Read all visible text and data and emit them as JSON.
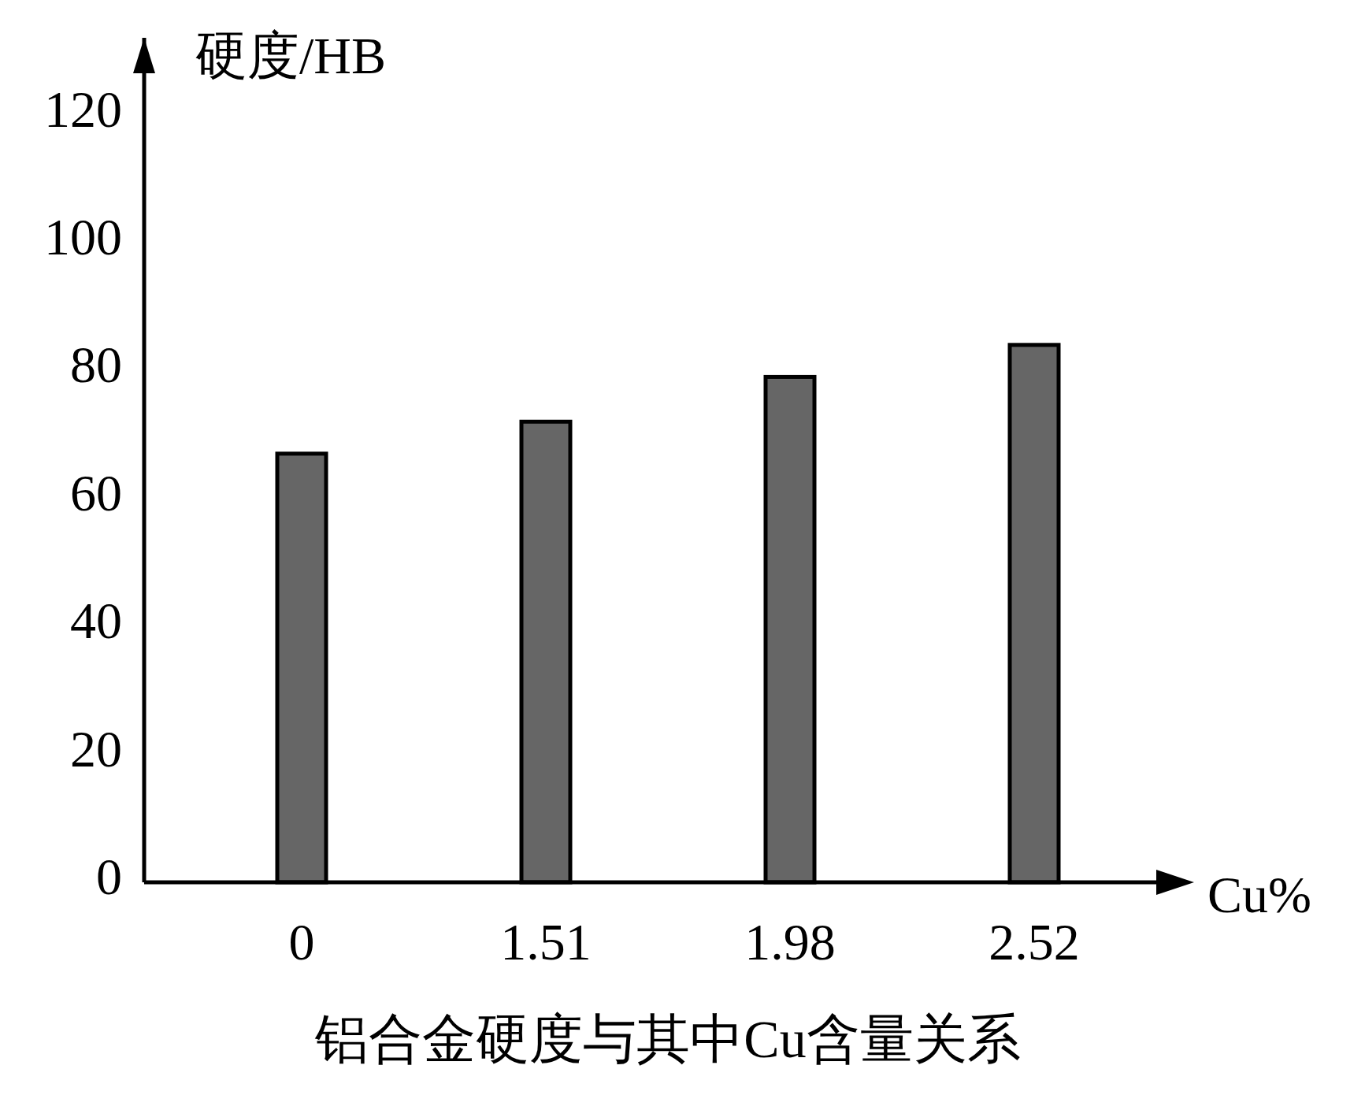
{
  "chart_data": {
    "type": "bar",
    "title": "铝合金硬度与其中Cu含量关系",
    "xlabel": "Cu%",
    "ylabel": "硬度/HB",
    "categories": [
      "0",
      "1.51",
      "1.98",
      "2.52"
    ],
    "values": [
      67,
      72,
      79,
      84
    ],
    "color": "#666666",
    "ylim": [
      0,
      132
    ],
    "yticks": [
      0,
      20,
      40,
      60,
      80,
      100,
      120
    ],
    "grid": false
  }
}
